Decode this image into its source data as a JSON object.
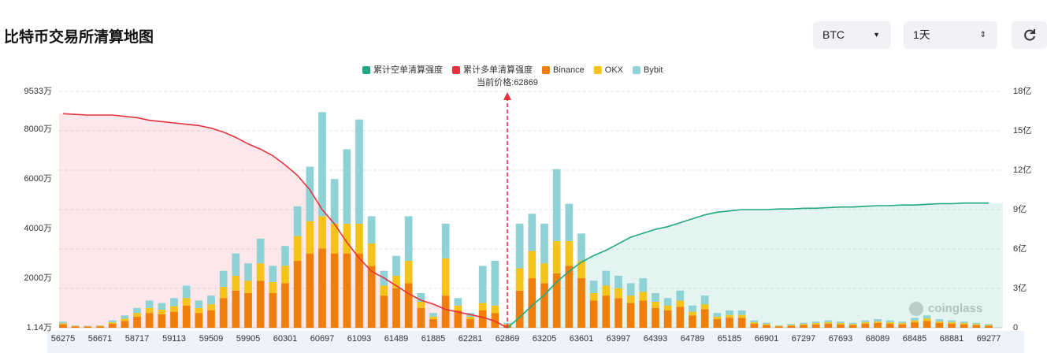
{
  "header": {
    "title": "比特币交易所清算地图",
    "coin": "BTC",
    "range": "1天"
  },
  "chart_data": {
    "type": "bar",
    "stacked": true,
    "categories": [
      56275,
      null,
      null,
      56671,
      null,
      null,
      58717,
      null,
      null,
      59113,
      null,
      null,
      59509,
      null,
      null,
      59905,
      null,
      null,
      60301,
      null,
      null,
      60697,
      null,
      null,
      61093,
      null,
      null,
      61489,
      null,
      null,
      61885,
      null,
      null,
      62281,
      null,
      null,
      62869,
      null,
      null,
      63205,
      null,
      null,
      63601,
      null,
      null,
      63997,
      null,
      null,
      64393,
      null,
      null,
      64789,
      null,
      null,
      65185,
      null,
      null,
      66901,
      null,
      null,
      67297,
      null,
      null,
      67693,
      null,
      null,
      68089,
      null,
      null,
      68485,
      null,
      null,
      68881,
      null,
      null,
      69277
    ],
    "series": [
      {
        "name": "累计空单清算强度",
        "type": "line",
        "axis": "y2",
        "color": "#1fa882",
        "area_color": "rgba(31,168,130,0.12)",
        "values": [
          null,
          null,
          null,
          null,
          null,
          null,
          null,
          null,
          null,
          null,
          null,
          null,
          null,
          null,
          null,
          null,
          null,
          null,
          null,
          null,
          null,
          null,
          null,
          null,
          null,
          null,
          null,
          null,
          null,
          null,
          null,
          null,
          null,
          null,
          null,
          null,
          0,
          0.8,
          1.7,
          2.5,
          3.5,
          4.3,
          5.0,
          5.5,
          5.9,
          6.4,
          6.9,
          7.2,
          7.5,
          7.7,
          8.0,
          8.3,
          8.6,
          8.8,
          8.9,
          9.0,
          9.0,
          9.0,
          9.05,
          9.05,
          9.1,
          9.1,
          9.15,
          9.2,
          9.2,
          9.25,
          9.3,
          9.3,
          9.35,
          9.35,
          9.4,
          9.45,
          9.45,
          9.5,
          9.5,
          9.5
        ]
      },
      {
        "name": "累计多单清算强度",
        "type": "line",
        "axis": "y2",
        "color": "#e5323e",
        "area_color": "rgba(229,50,62,0.11)",
        "values": [
          16.3,
          16.25,
          16.2,
          16.2,
          16.2,
          16.1,
          16.0,
          15.8,
          15.7,
          15.6,
          15.5,
          15.4,
          15.2,
          14.9,
          14.5,
          14.0,
          13.6,
          13.1,
          12.4,
          11.6,
          10.5,
          9.0,
          7.9,
          6.5,
          5.3,
          4.3,
          3.8,
          3.2,
          2.6,
          2.1,
          1.8,
          1.4,
          1.2,
          1.0,
          0.8,
          0.5,
          0,
          null,
          null,
          null,
          null,
          null,
          null,
          null,
          null,
          null,
          null,
          null,
          null,
          null,
          null,
          null,
          null,
          null,
          null,
          null,
          null,
          null,
          null,
          null,
          null,
          null,
          null,
          null,
          null,
          null,
          null,
          null,
          null,
          null,
          null,
          null,
          null,
          null,
          null,
          null
        ]
      },
      {
        "name": "Binance",
        "type": "bar",
        "color": "#ef7f0c",
        "values": [
          140,
          60,
          50,
          60,
          170,
          280,
          450,
          600,
          550,
          650,
          900,
          600,
          700,
          1200,
          1500,
          1400,
          1900,
          1400,
          1800,
          2700,
          3000,
          3200,
          3000,
          3000,
          3000,
          2500,
          1300,
          1600,
          1800,
          800,
          350,
          1300,
          700,
          350,
          700,
          600,
          120,
          1500,
          2000,
          1800,
          2200,
          2500,
          2000,
          1100,
          1300,
          1200,
          1000,
          1100,
          800,
          700,
          850,
          500,
          750,
          350,
          400,
          400,
          170,
          110,
          60,
          80,
          110,
          140,
          170,
          140,
          110,
          170,
          200,
          170,
          140,
          220,
          280,
          200,
          170,
          140,
          110,
          80
        ]
      },
      {
        "name": "OKX",
        "type": "bar",
        "color": "#f6c31a",
        "values": [
          40,
          20,
          15,
          20,
          50,
          90,
          150,
          200,
          180,
          220,
          300,
          200,
          250,
          450,
          600,
          500,
          700,
          450,
          700,
          1000,
          1300,
          1300,
          1200,
          1200,
          1200,
          900,
          400,
          500,
          900,
          250,
          100,
          1500,
          200,
          100,
          300,
          300,
          30,
          900,
          1100,
          800,
          1300,
          1000,
          700,
          300,
          400,
          400,
          300,
          350,
          250,
          200,
          250,
          150,
          200,
          100,
          120,
          120,
          50,
          40,
          20,
          30,
          40,
          50,
          60,
          50,
          40,
          60,
          60,
          50,
          50,
          80,
          100,
          60,
          60,
          50,
          40,
          30
        ]
      },
      {
        "name": "Bybit",
        "type": "bar",
        "color": "#8fd2d6",
        "values": [
          70,
          20,
          15,
          20,
          80,
          130,
          200,
          300,
          270,
          330,
          500,
          300,
          350,
          650,
          900,
          700,
          1000,
          650,
          800,
          1200,
          2200,
          4200,
          1800,
          3000,
          4200,
          1100,
          600,
          800,
          1800,
          350,
          150,
          1400,
          300,
          150,
          1500,
          1800,
          50,
          1800,
          1500,
          1600,
          2900,
          1500,
          1100,
          500,
          600,
          500,
          500,
          550,
          350,
          300,
          400,
          250,
          350,
          150,
          180,
          180,
          80,
          50,
          20,
          40,
          50,
          60,
          70,
          60,
          50,
          70,
          90,
          80,
          60,
          100,
          120,
          90,
          70,
          60,
          50,
          40
        ]
      }
    ],
    "ylim": [
      1.14,
      9533
    ],
    "yticks": [
      {
        "value": 1.14,
        "label": "1.14万"
      },
      {
        "value": 2000,
        "label": "2000万"
      },
      {
        "value": 4000,
        "label": "4000万"
      },
      {
        "value": 6000,
        "label": "6000万"
      },
      {
        "value": 8000,
        "label": "8000万"
      },
      {
        "value": 9533,
        "label": "9533万"
      }
    ],
    "y2lim": [
      0,
      18
    ],
    "y2ticks": [
      0,
      {
        "value": 3,
        "label": "3亿"
      },
      {
        "value": 6,
        "label": "6亿"
      },
      {
        "value": 9,
        "label": "9亿"
      },
      {
        "value": 12,
        "label": "12亿"
      },
      {
        "value": 15,
        "label": "15亿"
      },
      {
        "value": 18,
        "label": "18亿"
      }
    ],
    "grid": true,
    "current_price": 62869,
    "annotation": "当前价格:62869",
    "annotation_color": "#e5323e",
    "watermark": "coinglass"
  }
}
